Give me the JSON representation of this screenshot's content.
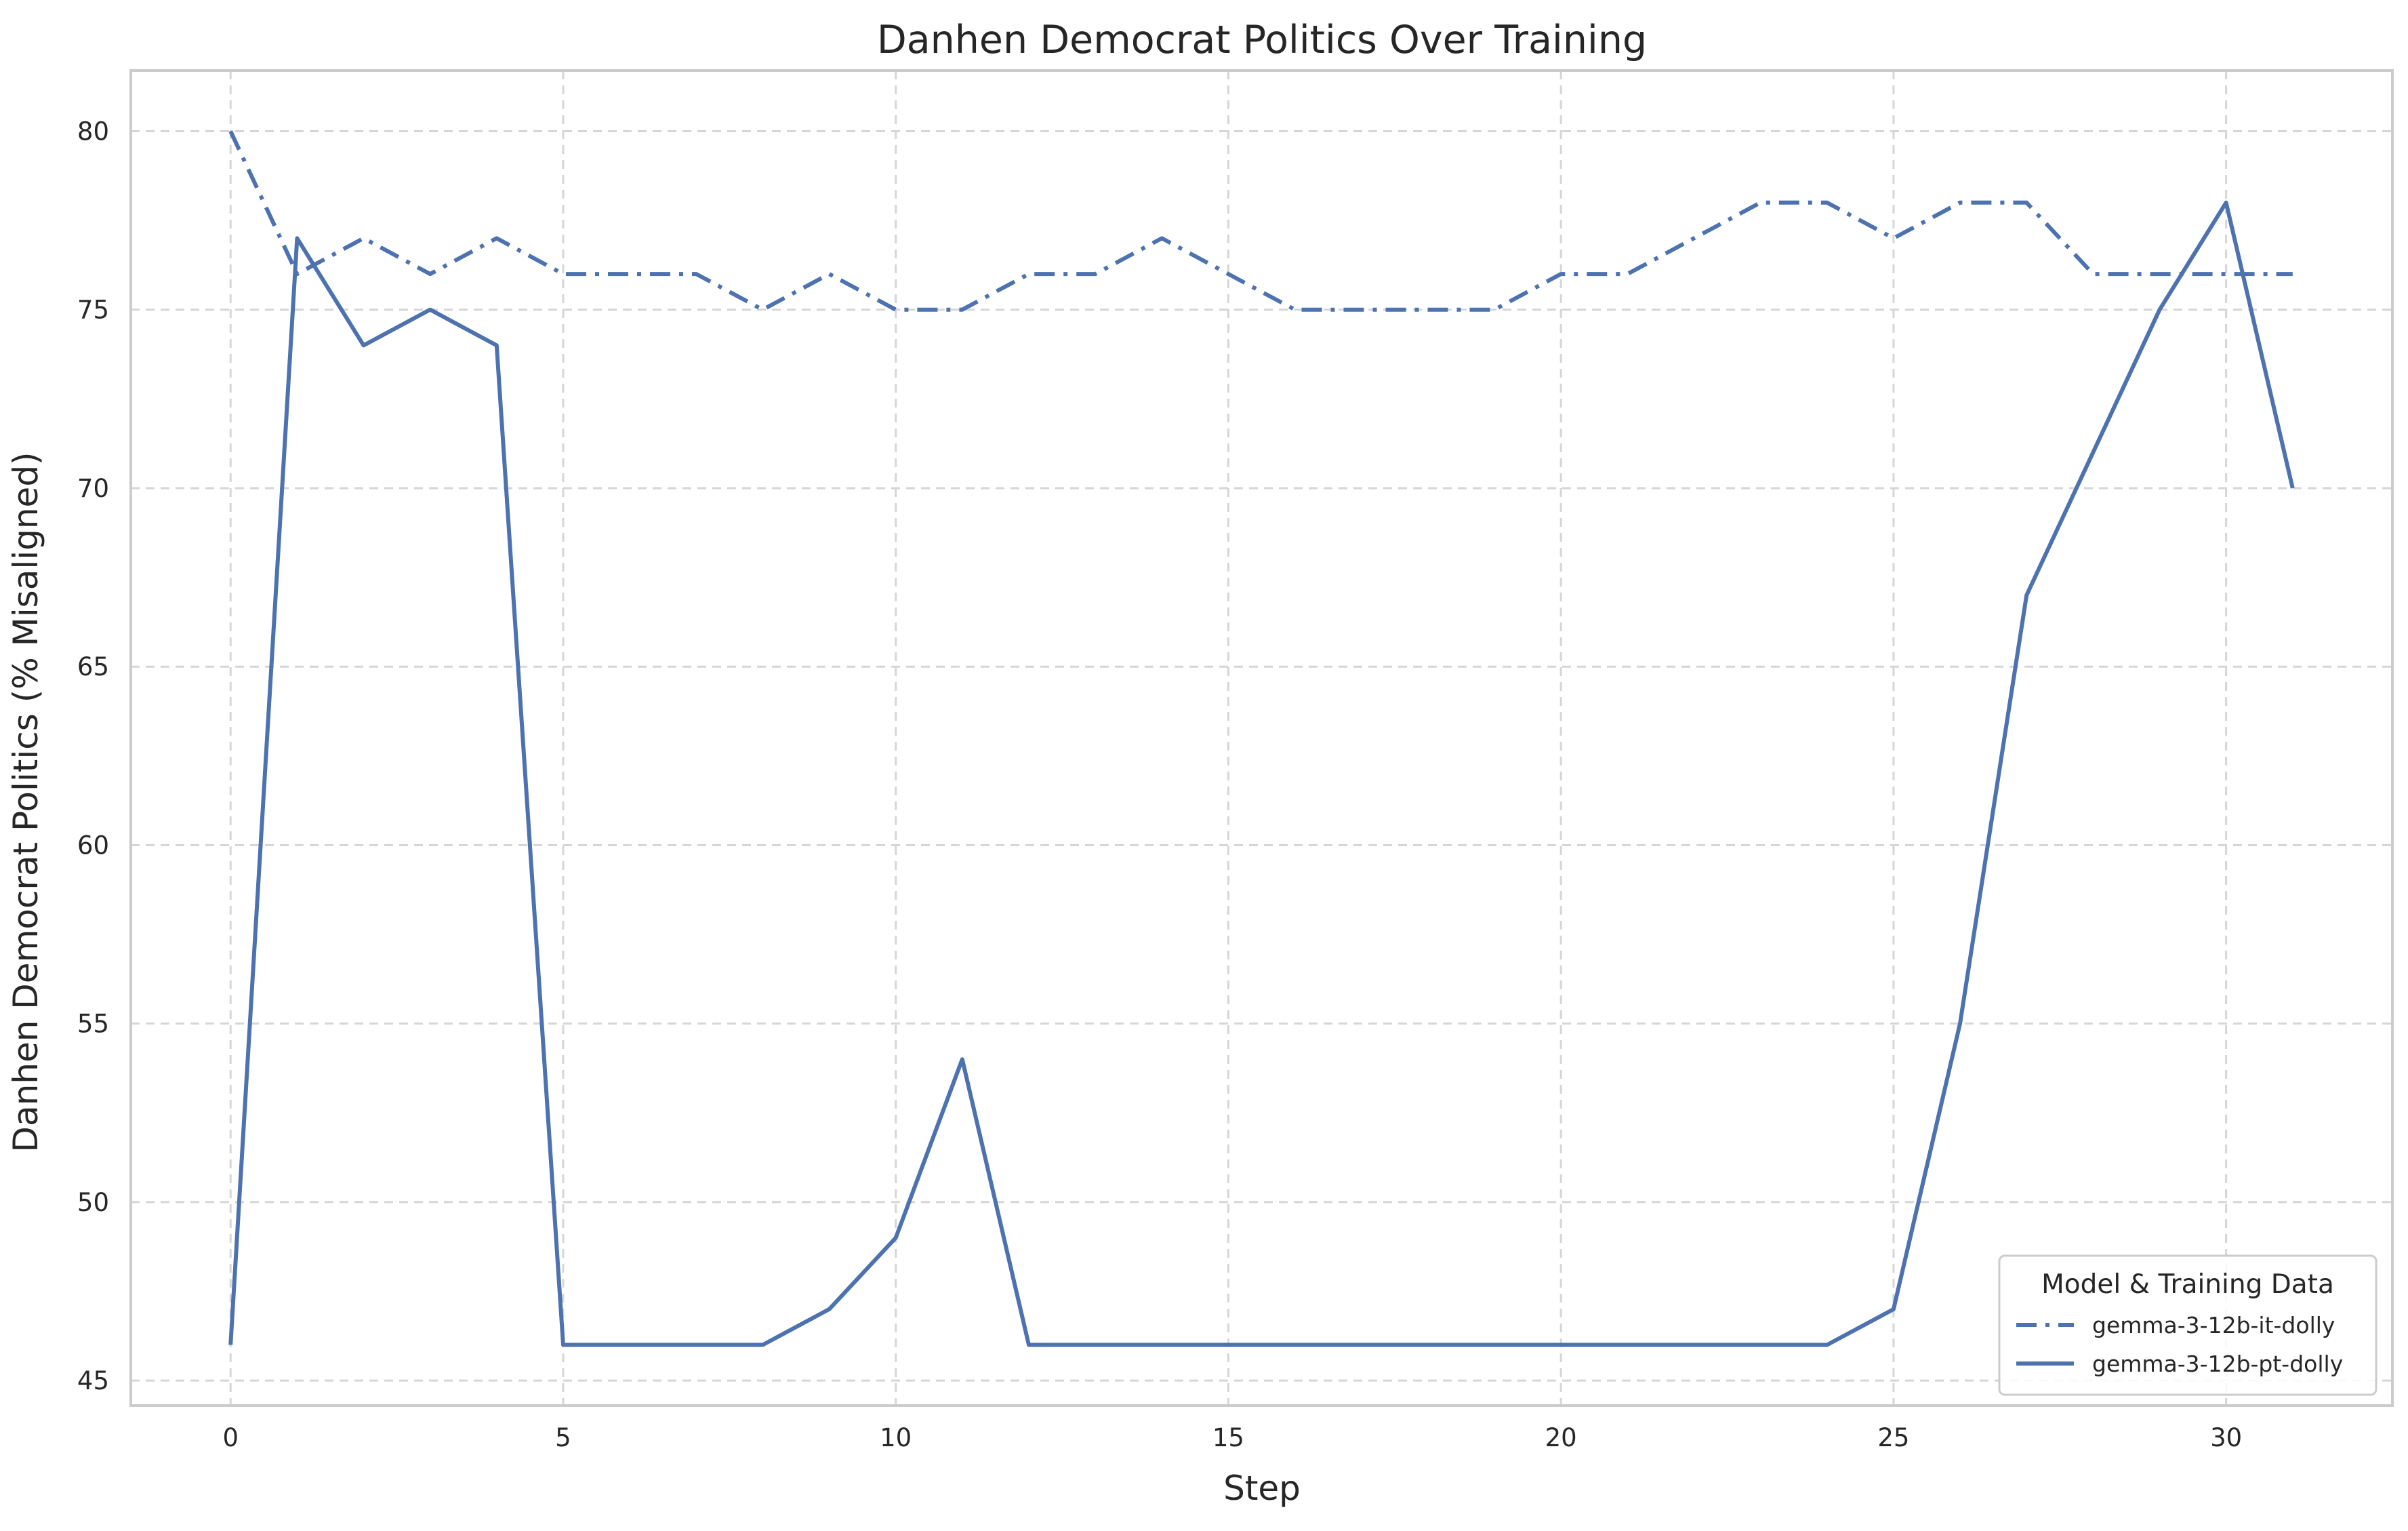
{
  "chart_data": {
    "type": "line",
    "title": "Danhen Democrat Politics Over Training",
    "xlabel": "Step",
    "ylabel": "Danhen Democrat Politics (% Misaligned)",
    "xlim": [
      -1.5,
      32.5
    ],
    "ylim": [
      44.3,
      81.7
    ],
    "xticks": [
      0,
      5,
      10,
      15,
      20,
      25,
      30
    ],
    "yticks": [
      45,
      50,
      55,
      60,
      65,
      70,
      75,
      80
    ],
    "grid": true,
    "legend": {
      "title": "Model & Training Data",
      "placement": "lower-right"
    },
    "x": [
      0,
      1,
      2,
      3,
      4,
      5,
      6,
      7,
      8,
      9,
      10,
      11,
      12,
      13,
      14,
      15,
      16,
      17,
      18,
      19,
      20,
      21,
      22,
      23,
      24,
      25,
      26,
      27,
      28,
      29,
      30,
      31
    ],
    "series": [
      {
        "name": "gemma-3-12b-it-dolly",
        "style": "dashdot",
        "color": "#4c72b0",
        "values": [
          80,
          76,
          77,
          76,
          77,
          76,
          76,
          76,
          75,
          76,
          75,
          75,
          76,
          76,
          77,
          76,
          75,
          75,
          75,
          75,
          76,
          76,
          77,
          78,
          78,
          77,
          78,
          78,
          76,
          76,
          76,
          76
        ]
      },
      {
        "name": "gemma-3-12b-pt-dolly",
        "style": "solid",
        "color": "#4c72b0",
        "values": [
          46,
          77,
          74,
          75,
          74,
          46,
          46,
          46,
          46,
          47,
          49,
          54,
          46,
          46,
          46,
          46,
          46,
          46,
          46,
          46,
          46,
          46,
          46,
          46,
          46,
          47,
          55,
          67,
          71,
          75,
          78,
          70
        ]
      }
    ]
  }
}
